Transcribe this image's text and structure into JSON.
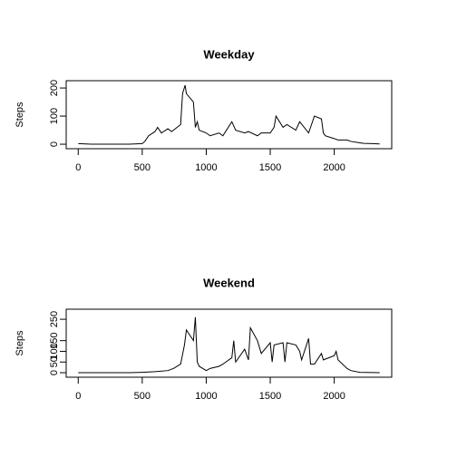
{
  "chart_data": [
    {
      "type": "line",
      "title": "Weekday",
      "ylabel": "Steps",
      "color": "#000000",
      "xlim": [
        -94,
        2449
      ],
      "ylim": [
        -16,
        226
      ],
      "xticks": [
        0,
        500,
        1000,
        1500,
        2000
      ],
      "yticks": [
        0,
        100,
        200
      ],
      "series": [
        {
          "name": "Weekday",
          "x": [
            0,
            100,
            200,
            300,
            400,
            500,
            520,
            550,
            600,
            620,
            650,
            700,
            730,
            800,
            815,
            835,
            845,
            900,
            915,
            930,
            945,
            1000,
            1030,
            1100,
            1130,
            1200,
            1230,
            1300,
            1330,
            1400,
            1430,
            1500,
            1530,
            1545,
            1600,
            1630,
            1700,
            1730,
            1800,
            1830,
            1845,
            1900,
            1915,
            1930,
            2000,
            2030,
            2100,
            2130,
            2200,
            2230,
            2300,
            2355
          ],
          "values": [
            2,
            0,
            0,
            0,
            0,
            2,
            10,
            30,
            45,
            60,
            40,
            55,
            45,
            70,
            180,
            210,
            180,
            150,
            60,
            80,
            50,
            40,
            30,
            40,
            30,
            80,
            50,
            40,
            45,
            30,
            40,
            40,
            60,
            100,
            60,
            70,
            50,
            80,
            40,
            80,
            100,
            90,
            40,
            30,
            20,
            15,
            15,
            10,
            5,
            3,
            2,
            1
          ]
        }
      ]
    },
    {
      "type": "line",
      "title": "Weekend",
      "ylabel": "Steps",
      "color": "#000000",
      "xlim": [
        -94,
        2449
      ],
      "ylim": [
        -21,
        297
      ],
      "xticks": [
        0,
        500,
        1000,
        1500,
        2000
      ],
      "yticks": [
        0,
        50,
        100,
        150,
        250
      ],
      "series": [
        {
          "name": "Weekend",
          "x": [
            0,
            100,
            200,
            300,
            400,
            500,
            600,
            700,
            745,
            800,
            830,
            845,
            900,
            915,
            930,
            945,
            1000,
            1030,
            1100,
            1130,
            1200,
            1215,
            1230,
            1300,
            1330,
            1345,
            1400,
            1430,
            1500,
            1515,
            1530,
            1600,
            1615,
            1630,
            1700,
            1730,
            1745,
            1800,
            1815,
            1845,
            1900,
            1915,
            2000,
            2015,
            2030,
            2100,
            2130,
            2200,
            2355
          ],
          "values": [
            0,
            0,
            0,
            0,
            0,
            2,
            5,
            10,
            20,
            40,
            130,
            200,
            150,
            260,
            50,
            30,
            10,
            20,
            30,
            40,
            70,
            150,
            50,
            110,
            60,
            210,
            150,
            90,
            140,
            50,
            130,
            140,
            50,
            140,
            130,
            100,
            60,
            160,
            40,
            40,
            90,
            60,
            80,
            100,
            60,
            20,
            10,
            2,
            0
          ]
        }
      ]
    }
  ]
}
